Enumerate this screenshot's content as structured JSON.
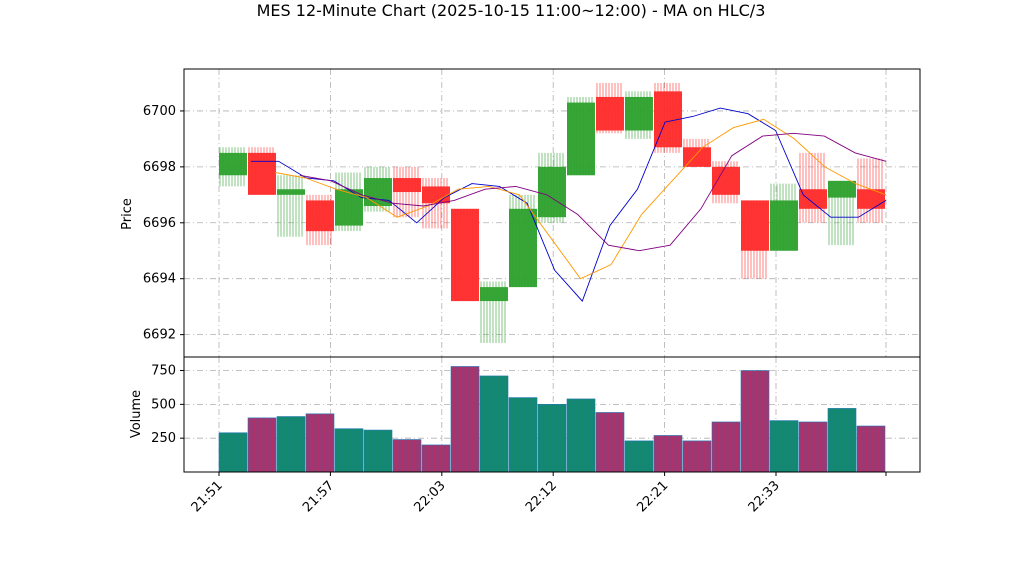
{
  "chart_data": {
    "type": "candlestick",
    "title": "MES 12-Minute Chart (2025-10-15 11:00~12:00) - MA on HLC/3",
    "price_panel": {
      "ylabel": "Price",
      "ylim": [
        6691.2,
        6701.5
      ],
      "yticks": [
        6692,
        6694,
        6696,
        6698,
        6700
      ],
      "grid": true
    },
    "volume_panel": {
      "ylabel": "Volume",
      "ylim": [
        0,
        850
      ],
      "yticks": [
        250,
        500,
        750
      ],
      "grid": true
    },
    "x_tick_labels": [
      "21:51",
      "21:57",
      "22:03",
      "22:12",
      "22:21",
      "22:33"
    ],
    "candle_colors": {
      "up": "#2ca02c",
      "down": "#ff2a2a",
      "bar_edge": "#1f77b4"
    },
    "candles": [
      {
        "open": 6697.7,
        "high": 6698.7,
        "low": 6697.3,
        "close": 6698.5,
        "volume": 290
      },
      {
        "open": 6698.5,
        "high": 6698.7,
        "low": 6697.0,
        "close": 6697.0,
        "volume": 400
      },
      {
        "open": 6697.0,
        "high": 6697.7,
        "low": 6695.5,
        "close": 6697.2,
        "volume": 410
      },
      {
        "open": 6696.8,
        "high": 6697.0,
        "low": 6695.2,
        "close": 6695.7,
        "volume": 430
      },
      {
        "open": 6695.9,
        "high": 6697.8,
        "low": 6695.7,
        "close": 6697.2,
        "volume": 320
      },
      {
        "open": 6696.6,
        "high": 6698.0,
        "low": 6696.4,
        "close": 6697.6,
        "volume": 310
      },
      {
        "open": 6697.6,
        "high": 6698.0,
        "low": 6696.2,
        "close": 6697.1,
        "volume": 240
      },
      {
        "open": 6697.3,
        "high": 6697.6,
        "low": 6695.8,
        "close": 6696.7,
        "volume": 200
      },
      {
        "open": 6696.5,
        "high": 6696.5,
        "low": 6693.2,
        "close": 6693.2,
        "volume": 780
      },
      {
        "open": 6693.2,
        "high": 6693.9,
        "low": 6691.7,
        "close": 6693.7,
        "volume": 710
      },
      {
        "open": 6693.7,
        "high": 6697.0,
        "low": 6693.7,
        "close": 6696.5,
        "volume": 550
      },
      {
        "open": 6696.2,
        "high": 6698.5,
        "low": 6696.0,
        "close": 6698.0,
        "volume": 500
      },
      {
        "open": 6697.7,
        "high": 6700.5,
        "low": 6697.7,
        "close": 6700.3,
        "volume": 540
      },
      {
        "open": 6700.5,
        "high": 6701.0,
        "low": 6699.2,
        "close": 6699.3,
        "volume": 440
      },
      {
        "open": 6699.3,
        "high": 6700.7,
        "low": 6699.0,
        "close": 6700.5,
        "volume": 230
      },
      {
        "open": 6700.7,
        "high": 6701.0,
        "low": 6698.5,
        "close": 6698.7,
        "volume": 270
      },
      {
        "open": 6698.7,
        "high": 6699.0,
        "low": 6698.0,
        "close": 6698.0,
        "volume": 230
      },
      {
        "open": 6698.0,
        "high": 6698.2,
        "low": 6696.7,
        "close": 6697.0,
        "volume": 370
      },
      {
        "open": 6696.8,
        "high": 6696.8,
        "low": 6694.0,
        "close": 6695.0,
        "volume": 750
      },
      {
        "open": 6695.0,
        "high": 6697.4,
        "low": 6695.0,
        "close": 6696.8,
        "volume": 380
      },
      {
        "open": 6697.2,
        "high": 6698.5,
        "low": 6696.0,
        "close": 6696.5,
        "volume": 370
      },
      {
        "open": 6696.9,
        "high": 6697.5,
        "low": 6695.2,
        "close": 6697.5,
        "volume": 470
      },
      {
        "open": 6697.2,
        "high": 6698.3,
        "low": 6696.0,
        "close": 6696.5,
        "volume": 340
      }
    ],
    "moving_averages": [
      {
        "color": "#0000cc",
        "values": [
          6698.2,
          6698.2,
          6697.6,
          6697.5,
          6696.9,
          6696.8,
          6696.0,
          6696.9,
          6697.4,
          6697.3,
          6696.7,
          6694.3,
          6693.2,
          6695.9,
          6697.2,
          6699.6,
          6699.8,
          6700.1,
          6699.9,
          6699.3,
          6697.0,
          6696.2,
          6696.2,
          6696.8
        ]
      },
      {
        "color": "#ff9900",
        "values": [
          6697.8,
          6697.6,
          6697.2,
          6696.9,
          6696.2,
          6696.6,
          6697.2,
          6697.3,
          6697.0,
          6695.5,
          6694.0,
          6694.5,
          6696.3,
          6697.5,
          6698.7,
          6699.4,
          6699.7,
          6699.0,
          6698.0,
          6697.4,
          6697.0
        ]
      },
      {
        "color": "#800080",
        "values": [
          6697.7,
          6697.5,
          6697.0,
          6696.7,
          6696.6,
          6696.8,
          6697.2,
          6697.3,
          6697.0,
          6696.3,
          6695.2,
          6695.0,
          6695.2,
          6696.5,
          6698.4,
          6699.1,
          6699.2,
          6699.1,
          6698.5,
          6698.2
        ]
      }
    ]
  }
}
